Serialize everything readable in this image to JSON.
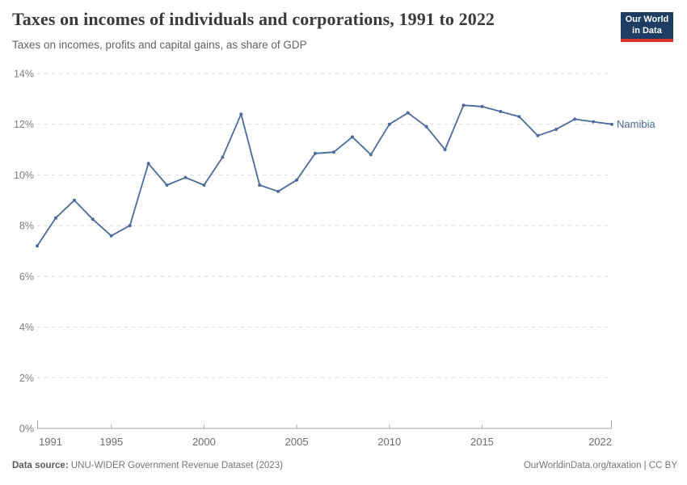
{
  "header": {
    "title": "Taxes on incomes of individuals and corporations, 1991 to 2022",
    "subtitle": "Taxes on incomes, profits and capital gains, as share of GDP",
    "logo": {
      "line1": "Our World",
      "line2": "in Data",
      "bg_color": "#1d3d63",
      "accent_color": "#d7342f"
    }
  },
  "chart_data": {
    "type": "line",
    "title": "Taxes on incomes of individuals and corporations, 1991 to 2022",
    "subtitle": "Taxes on incomes, profits and capital gains, as share of GDP",
    "entity_label": "Namibia",
    "x": [
      1991,
      1992,
      1993,
      1994,
      1995,
      1996,
      1997,
      1998,
      1999,
      2000,
      2001,
      2002,
      2003,
      2004,
      2005,
      2006,
      2007,
      2008,
      2009,
      2010,
      2011,
      2012,
      2013,
      2014,
      2015,
      2016,
      2017,
      2018,
      2019,
      2020,
      2021,
      2022
    ],
    "series": [
      {
        "name": "Namibia",
        "color": "#4C6A9C",
        "values": [
          7.2,
          8.3,
          9.0,
          8.25,
          7.6,
          8.0,
          10.45,
          9.6,
          9.9,
          9.6,
          10.7,
          12.4,
          9.6,
          9.35,
          9.8,
          10.85,
          10.9,
          11.5,
          10.8,
          12.0,
          12.45,
          11.9,
          11.0,
          12.75,
          12.7,
          12.5,
          12.3,
          11.55,
          11.8,
          12.2,
          12.1,
          12.0
        ]
      }
    ],
    "xlabel": "",
    "ylabel": "",
    "ylim": [
      0,
      14
    ],
    "y_gridlines": [
      0,
      2,
      4,
      6,
      8,
      10,
      12,
      14
    ],
    "y_tick_suffix": "%",
    "x_tick_labels": [
      1991,
      1995,
      2000,
      2005,
      2010,
      2015,
      2022
    ],
    "grid": "horizontal-dashed",
    "legend_position": "end-of-line",
    "marker": "dot"
  },
  "colors": {
    "line": "#4C6A9C",
    "grid": "#d9d9d9",
    "axis": "#a5a5a5",
    "y_tick_text": "#7d7d7d",
    "x_tick_text": "#6d6d6d"
  },
  "footer": {
    "source_label": "Data source:",
    "source_text": "UNU-WIDER Government Revenue Dataset (2023)",
    "credit": "OurWorldinData.org/taxation | CC BY"
  }
}
